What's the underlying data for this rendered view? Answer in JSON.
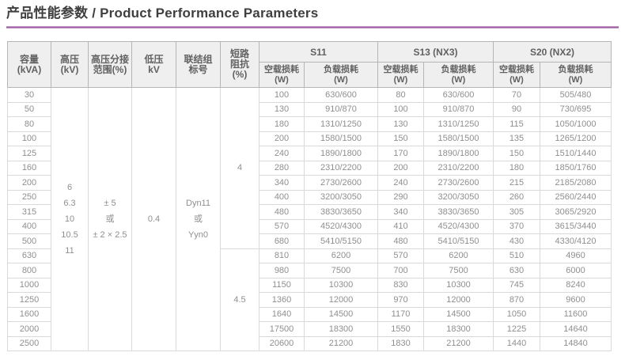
{
  "page": {
    "title_zh": "产品性能参数",
    "title_separator": "/",
    "title_en": "Product Performance Parameters",
    "accent_color": "#9c61a4"
  },
  "table": {
    "column_headers": {
      "capacity": [
        "容量",
        "(kVA)"
      ],
      "high_voltage": [
        "高压",
        "(kV)"
      ],
      "tap_range": [
        "高压分接",
        "范围(%)"
      ],
      "low_voltage": [
        "低压",
        "kV"
      ],
      "vector_group": [
        "联结组",
        "标号"
      ],
      "impedance": [
        "短路",
        "阻抗",
        "(%)"
      ]
    },
    "series_groups": [
      {
        "label": "S11"
      },
      {
        "label": "S13 (NX3)"
      },
      {
        "label": "S20 (NX2)"
      }
    ],
    "loss_headers": {
      "no_load": [
        "空载损耗",
        "(W)"
      ],
      "load": [
        "负载损耗",
        "(W)"
      ]
    },
    "merged_cells": {
      "high_voltage_values": [
        "6",
        "6.3",
        "10",
        "10.5",
        "11"
      ],
      "tap_range_values": [
        "± 5",
        "或",
        "± 2 × 2.5"
      ],
      "low_voltage_value": "0.4",
      "vector_group_values": [
        "Dyn11",
        "或",
        "Yyn0"
      ],
      "impedance_blocks": [
        {
          "value": "4",
          "row_count": 11
        },
        {
          "value": "4.5",
          "row_count": 7
        }
      ]
    },
    "rows": [
      {
        "kva": "30",
        "s11_no_load": "100",
        "s11_load": "630/600",
        "s13_no_load": "80",
        "s13_load": "630/600",
        "s20_no_load": "70",
        "s20_load": "505/480"
      },
      {
        "kva": "50",
        "s11_no_load": "130",
        "s11_load": "910/870",
        "s13_no_load": "100",
        "s13_load": "910/870",
        "s20_no_load": "90",
        "s20_load": "730/695"
      },
      {
        "kva": "80",
        "s11_no_load": "180",
        "s11_load": "1310/1250",
        "s13_no_load": "130",
        "s13_load": "1310/1250",
        "s20_no_load": "115",
        "s20_load": "1050/1000"
      },
      {
        "kva": "100",
        "s11_no_load": "200",
        "s11_load": "1580/1500",
        "s13_no_load": "150",
        "s13_load": "1580/1500",
        "s20_no_load": "135",
        "s20_load": "1265/1200"
      },
      {
        "kva": "125",
        "s11_no_load": "240",
        "s11_load": "1890/1800",
        "s13_no_load": "170",
        "s13_load": "1890/1800",
        "s20_no_load": "150",
        "s20_load": "1510/1440"
      },
      {
        "kva": "160",
        "s11_no_load": "280",
        "s11_load": "2310/2200",
        "s13_no_load": "200",
        "s13_load": "2310/2200",
        "s20_no_load": "180",
        "s20_load": "1850/1760"
      },
      {
        "kva": "200",
        "s11_no_load": "340",
        "s11_load": "2730/2600",
        "s13_no_load": "240",
        "s13_load": "2730/2600",
        "s20_no_load": "215",
        "s20_load": "2185/2080"
      },
      {
        "kva": "250",
        "s11_no_load": "400",
        "s11_load": "3200/3050",
        "s13_no_load": "290",
        "s13_load": "3200/3050",
        "s20_no_load": "260",
        "s20_load": "2560/2440"
      },
      {
        "kva": "315",
        "s11_no_load": "480",
        "s11_load": "3830/3650",
        "s13_no_load": "340",
        "s13_load": "3830/3650",
        "s20_no_load": "305",
        "s20_load": "3065/2920"
      },
      {
        "kva": "400",
        "s11_no_load": "570",
        "s11_load": "4520/4300",
        "s13_no_load": "410",
        "s13_load": "4520/4300",
        "s20_no_load": "370",
        "s20_load": "3615/3440"
      },
      {
        "kva": "500",
        "s11_no_load": "680",
        "s11_load": "5410/5150",
        "s13_no_load": "480",
        "s13_load": "5410/5150",
        "s20_no_load": "430",
        "s20_load": "4330/4120"
      },
      {
        "kva": "630",
        "s11_no_load": "810",
        "s11_load": "6200",
        "s13_no_load": "570",
        "s13_load": "6200",
        "s20_no_load": "510",
        "s20_load": "4960"
      },
      {
        "kva": "800",
        "s11_no_load": "980",
        "s11_load": "7500",
        "s13_no_load": "700",
        "s13_load": "7500",
        "s20_no_load": "630",
        "s20_load": "6000"
      },
      {
        "kva": "1000",
        "s11_no_load": "1150",
        "s11_load": "10300",
        "s13_no_load": "830",
        "s13_load": "10300",
        "s20_no_load": "745",
        "s20_load": "8240"
      },
      {
        "kva": "1250",
        "s11_no_load": "1360",
        "s11_load": "12000",
        "s13_no_load": "970",
        "s13_load": "12000",
        "s20_no_load": "870",
        "s20_load": "9600"
      },
      {
        "kva": "1600",
        "s11_no_load": "1640",
        "s11_load": "14500",
        "s13_no_load": "1170",
        "s13_load": "14500",
        "s20_no_load": "1050",
        "s20_load": "11600"
      },
      {
        "kva": "2000",
        "s11_no_load": "17500",
        "s11_load": "18300",
        "s13_no_load": "1550",
        "s13_load": "18300",
        "s20_no_load": "1225",
        "s20_load": "14640"
      },
      {
        "kva": "2500",
        "s11_no_load": "20600",
        "s11_load": "21200",
        "s13_no_load": "1830",
        "s13_load": "21200",
        "s20_no_load": "1440",
        "s20_load": "14840"
      }
    ]
  }
}
